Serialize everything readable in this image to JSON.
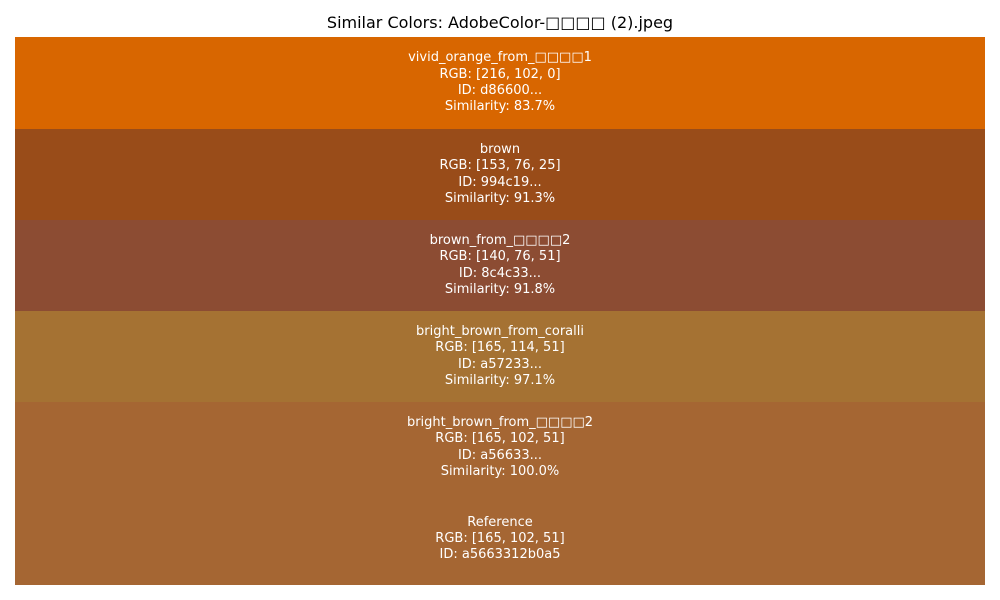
{
  "title": "Similar Colors: AdobeColor-□□□□ (2).jpeg",
  "chart_data": {
    "type": "color-swatch-list",
    "swatches": [
      {
        "name": "vivid_orange_from_□□□□1",
        "color": "#d86600",
        "rgb_label": "RGB: [216, 102, 0]",
        "id_label": "ID: d86600...",
        "similarity_label": "Similarity: 83.7%",
        "rgb": [
          216,
          102,
          0
        ],
        "similarity": 83.7
      },
      {
        "name": "brown",
        "color": "#994c19",
        "rgb_label": "RGB: [153, 76, 25]",
        "id_label": "ID: 994c19...",
        "similarity_label": "Similarity: 91.3%",
        "rgb": [
          153,
          76,
          25
        ],
        "similarity": 91.3
      },
      {
        "name": "brown_from_□□□□2",
        "color": "#8c4c33",
        "rgb_label": "RGB: [140, 76, 51]",
        "id_label": "ID: 8c4c33...",
        "similarity_label": "Similarity: 91.8%",
        "rgb": [
          140,
          76,
          51
        ],
        "similarity": 91.8
      },
      {
        "name": "bright_brown_from_coralli",
        "color": "#a57233",
        "rgb_label": "RGB: [165, 114, 51]",
        "id_label": "ID: a57233...",
        "similarity_label": "Similarity: 97.1%",
        "rgb": [
          165,
          114,
          51
        ],
        "similarity": 97.1
      },
      {
        "name": "bright_brown_from_□□□□2",
        "color": "#a56633",
        "rgb_label": "RGB: [165, 102, 51]",
        "id_label": "ID: a56633...",
        "similarity_label": "Similarity: 100.0%",
        "rgb": [
          165,
          102,
          51
        ],
        "similarity": 100.0
      }
    ],
    "reference": {
      "name": "Reference",
      "color": "#a56633",
      "rgb_label": "RGB: [165, 102, 51]",
      "id_label": "ID: a5663312b0a5",
      "rgb": [
        165,
        102,
        51
      ]
    }
  }
}
